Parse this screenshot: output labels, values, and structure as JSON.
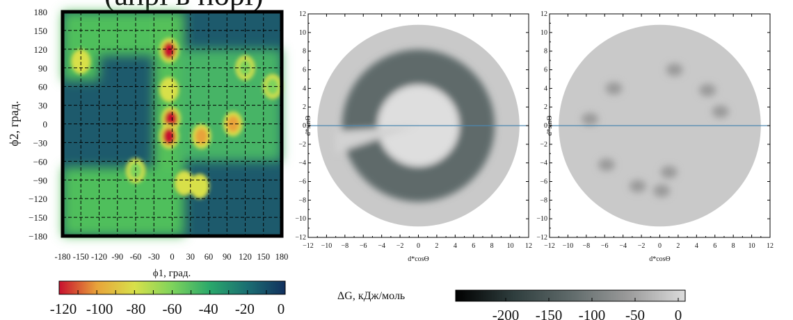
{
  "header_fragment": "(апрі в порі)",
  "chart_data": [
    {
      "type": "heatmap",
      "xlabel": "ϕ1, град.",
      "ylabel": "ϕ2, град.",
      "xlim": [
        -180,
        180
      ],
      "ylim": [
        -180,
        180
      ],
      "xticks": [
        "-180",
        "-150",
        "-120",
        "-90",
        "-60",
        "-30",
        "0",
        "30",
        "60",
        "90",
        "120",
        "150",
        "180"
      ],
      "yticks": [
        "180",
        "150",
        "120",
        "90",
        "60",
        "30",
        "0",
        "−30",
        "−60",
        "−90",
        "−120",
        "−150",
        "−180"
      ],
      "grid": true,
      "colorbar": {
        "ticks": [
          "-120",
          "-100",
          "-80",
          "-60",
          "-40",
          "-20",
          "0"
        ],
        "range": [
          -120,
          0
        ],
        "colors": [
          "#c8102e",
          "#e8a33a",
          "#d8e04a",
          "#7ed35c",
          "#2aa86b",
          "#1b6e72",
          "#12305e"
        ]
      },
      "features": [
        {
          "phi1": -5,
          "phi2": 118,
          "dG": -120
        },
        {
          "phi1": -5,
          "phi2": 55,
          "dG": -85
        },
        {
          "phi1": -2,
          "phi2": 8,
          "dG": -120
        },
        {
          "phi1": -5,
          "phi2": -20,
          "dG": -115
        },
        {
          "phi1": 48,
          "phi2": -20,
          "dG": -110
        },
        {
          "phi1": 100,
          "phi2": 0,
          "dG": -100
        },
        {
          "phi1": -150,
          "phi2": 100,
          "dG": -90
        },
        {
          "phi1": 120,
          "phi2": 90,
          "dG": -60
        },
        {
          "phi1": 165,
          "phi2": 60,
          "dG": -70
        },
        {
          "phi1": -60,
          "phi2": -75,
          "dG": -55
        },
        {
          "phi1": 20,
          "phi2": -95,
          "dG": -80
        },
        {
          "phi1": 45,
          "phi2": -100,
          "dG": -75
        }
      ]
    },
    {
      "type": "heatmap",
      "xlabel": "d*cosΘ",
      "ylabel": "d*sinΘ",
      "xlim": [
        -12,
        12
      ],
      "ylim": [
        -12,
        12
      ],
      "xticks": [
        "−12",
        "−10",
        "−8",
        "−6",
        "−4",
        "−2",
        "0",
        "2",
        "4",
        "6",
        "8",
        "10",
        "12"
      ],
      "yticks": [
        "12",
        "10",
        "8",
        "6",
        "4",
        "2",
        "0",
        "−2",
        "−4",
        "−6",
        "−8",
        "−10",
        "−12"
      ],
      "radius": 11,
      "reference_line_y": 0,
      "ring_inner_radius": 4.5,
      "ring_outer_radius": 8.3,
      "ring_dG": -120
    },
    {
      "type": "heatmap",
      "xlabel": "d*cosΘ",
      "ylabel": "d*sinΘ",
      "xlim": [
        -12,
        12
      ],
      "ylim": [
        -12,
        12
      ],
      "xticks": [
        "−12",
        "−10",
        "−8",
        "−6",
        "−4",
        "−2",
        "0",
        "2",
        "4",
        "6",
        "8",
        "10",
        "12"
      ],
      "yticks": [
        "12",
        "10",
        "8",
        "6",
        "4",
        "2",
        "0",
        "−2",
        "−4",
        "−6",
        "−8",
        "−10",
        "−12"
      ],
      "radius": 11,
      "reference_line_y": 0,
      "spots": [
        {
          "x": -5,
          "y": 4,
          "dG": -60
        },
        {
          "x": -7.6,
          "y": 0.7,
          "dG": -55
        },
        {
          "x": -5.8,
          "y": -4.2,
          "dG": -55
        },
        {
          "x": -2.4,
          "y": -6.5,
          "dG": -70
        },
        {
          "x": 0.2,
          "y": -7,
          "dG": -85
        },
        {
          "x": 1,
          "y": -5,
          "dG": -60
        },
        {
          "x": 1.6,
          "y": 6,
          "dG": -45
        },
        {
          "x": 5.2,
          "y": 3.8,
          "dG": -45
        },
        {
          "x": 6.6,
          "y": 1.5,
          "dG": -45
        }
      ],
      "colorbar": {
        "ticks": [
          "-200",
          "-150",
          "-100",
          "-50",
          "0"
        ],
        "range": [
          -230,
          0
        ],
        "colors": [
          "#000000",
          "#2e3d3d",
          "#5f6a6a",
          "#9a9a9a",
          "#dcdcdc"
        ]
      }
    }
  ],
  "colorbar_label": "ΔG, кДж/моль"
}
